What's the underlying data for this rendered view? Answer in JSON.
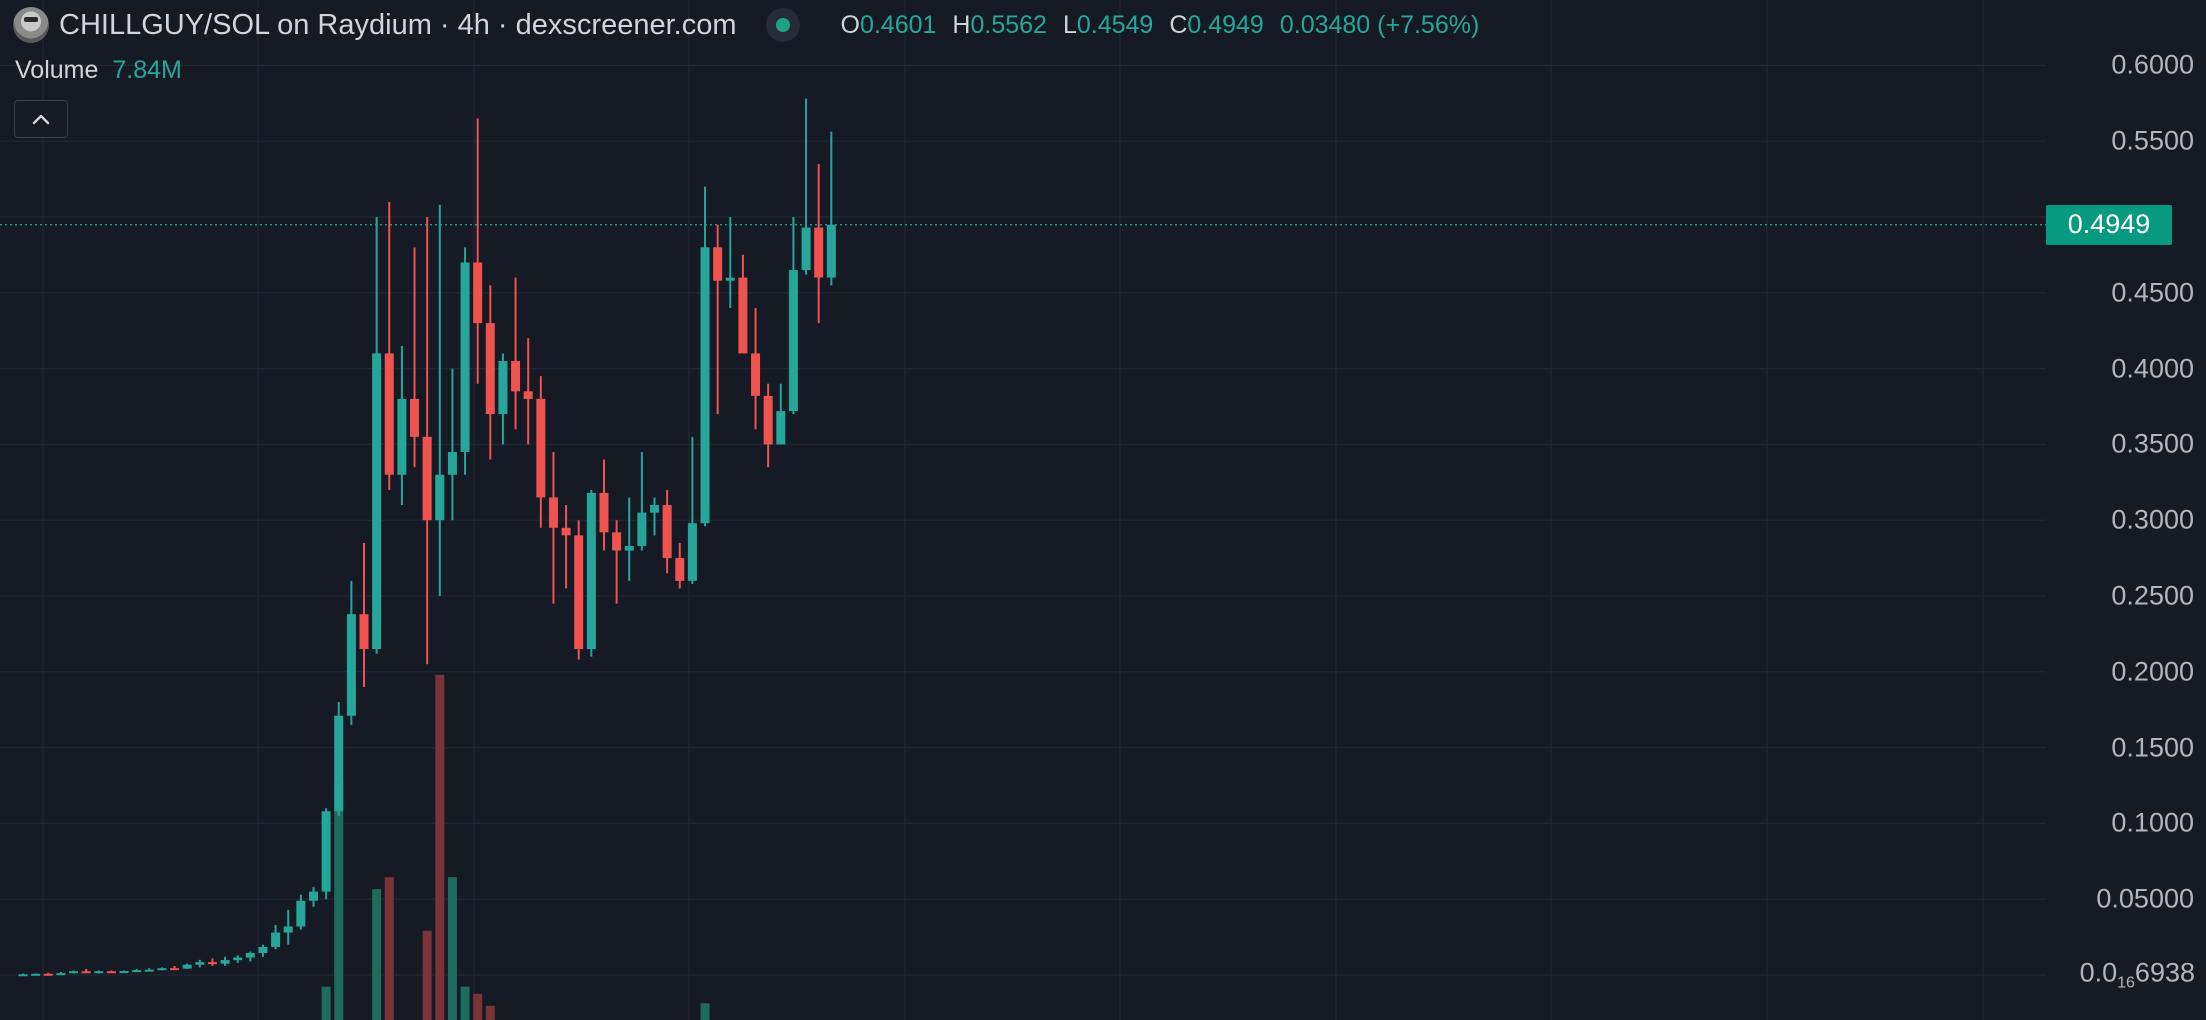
{
  "header": {
    "title": "CHILLGUY/SOL on Raydium · 4h · dexscreener.com",
    "ohlc": {
      "o_key": "O",
      "o_val": "0.4601",
      "h_key": "H",
      "h_val": "0.5562",
      "l_key": "L",
      "l_val": "0.4549",
      "c_key": "C",
      "c_val": "0.4949",
      "change": "0.03480 (+7.56%)"
    },
    "volume_label": "Volume",
    "volume_value": "7.84M",
    "logo_icon": "chillguy-token-icon",
    "live_icon": "live-status-dot-icon",
    "collapse_icon": "chevron-up-icon"
  },
  "price_axis": {
    "ticks": [
      "0.6000",
      "0.5500",
      "0.4500",
      "0.4000",
      "0.3500",
      "0.3000",
      "0.2500",
      "0.2000",
      "0.1500",
      "0.1000",
      "0.05000"
    ],
    "bottom_tick_prefix": "0.0",
    "bottom_tick_subscript": "16",
    "bottom_tick_suffix": "6938",
    "last_price": "0.4949"
  },
  "colors": {
    "background": "#161a25",
    "up": "#26a69a",
    "down": "#ef5350",
    "grid": "#232733",
    "price_line": "#26a69a"
  },
  "chart_data": {
    "type": "candlestick",
    "pair": "CHILLGUY/SOL",
    "interval": "4h",
    "y_ticks": [
      0.6,
      0.55,
      0.45,
      0.4,
      0.35,
      0.3,
      0.25,
      0.2,
      0.15,
      0.1,
      0.05
    ],
    "last_price": 0.4949,
    "candles": [
      {
        "o": 0.0,
        "h": 0.001,
        "l": 0.0,
        "c": 0.0005
      },
      {
        "o": 0.0005,
        "h": 0.001,
        "l": 0.0,
        "c": 0.0008
      },
      {
        "o": 0.0008,
        "h": 0.0015,
        "l": 0.0,
        "c": 0.0005
      },
      {
        "o": 0.0005,
        "h": 0.002,
        "l": 0.0,
        "c": 0.0012
      },
      {
        "o": 0.0012,
        "h": 0.003,
        "l": 0.001,
        "c": 0.0025
      },
      {
        "o": 0.0025,
        "h": 0.004,
        "l": 0.002,
        "c": 0.002
      },
      {
        "o": 0.002,
        "h": 0.003,
        "l": 0.001,
        "c": 0.0025
      },
      {
        "o": 0.0025,
        "h": 0.003,
        "l": 0.002,
        "c": 0.0022
      },
      {
        "o": 0.0022,
        "h": 0.003,
        "l": 0.002,
        "c": 0.0026
      },
      {
        "o": 0.0026,
        "h": 0.004,
        "l": 0.002,
        "c": 0.0032
      },
      {
        "o": 0.0032,
        "h": 0.0045,
        "l": 0.0025,
        "c": 0.0035
      },
      {
        "o": 0.0035,
        "h": 0.005,
        "l": 0.003,
        "c": 0.0045
      },
      {
        "o": 0.0045,
        "h": 0.006,
        "l": 0.0035,
        "c": 0.0042
      },
      {
        "o": 0.0042,
        "h": 0.0075,
        "l": 0.004,
        "c": 0.0068
      },
      {
        "o": 0.0068,
        "h": 0.01,
        "l": 0.005,
        "c": 0.0085
      },
      {
        "o": 0.0085,
        "h": 0.011,
        "l": 0.006,
        "c": 0.0075
      },
      {
        "o": 0.0075,
        "h": 0.012,
        "l": 0.006,
        "c": 0.0098
      },
      {
        "o": 0.0098,
        "h": 0.013,
        "l": 0.008,
        "c": 0.0115
      },
      {
        "o": 0.0115,
        "h": 0.0155,
        "l": 0.009,
        "c": 0.0145
      },
      {
        "o": 0.0145,
        "h": 0.02,
        "l": 0.012,
        "c": 0.0185
      },
      {
        "o": 0.0185,
        "h": 0.033,
        "l": 0.017,
        "c": 0.028
      },
      {
        "o": 0.028,
        "h": 0.043,
        "l": 0.02,
        "c": 0.032
      },
      {
        "o": 0.032,
        "h": 0.053,
        "l": 0.03,
        "c": 0.049
      },
      {
        "o": 0.049,
        "h": 0.058,
        "l": 0.045,
        "c": 0.055
      },
      {
        "o": 0.055,
        "h": 0.11,
        "l": 0.05,
        "c": 0.108
      },
      {
        "o": 0.108,
        "h": 0.18,
        "l": 0.105,
        "c": 0.171
      },
      {
        "o": 0.171,
        "h": 0.26,
        "l": 0.165,
        "c": 0.238
      },
      {
        "o": 0.238,
        "h": 0.285,
        "l": 0.19,
        "c": 0.215
      },
      {
        "o": 0.215,
        "h": 0.5,
        "l": 0.212,
        "c": 0.41
      },
      {
        "o": 0.41,
        "h": 0.51,
        "l": 0.32,
        "c": 0.33
      },
      {
        "o": 0.33,
        "h": 0.415,
        "l": 0.31,
        "c": 0.38
      },
      {
        "o": 0.38,
        "h": 0.48,
        "l": 0.335,
        "c": 0.355
      },
      {
        "o": 0.355,
        "h": 0.5,
        "l": 0.205,
        "c": 0.3
      },
      {
        "o": 0.3,
        "h": 0.508,
        "l": 0.25,
        "c": 0.33
      },
      {
        "o": 0.33,
        "h": 0.4,
        "l": 0.3,
        "c": 0.345
      },
      {
        "o": 0.345,
        "h": 0.48,
        "l": 0.33,
        "c": 0.47
      },
      {
        "o": 0.47,
        "h": 0.565,
        "l": 0.39,
        "c": 0.43
      },
      {
        "o": 0.43,
        "h": 0.455,
        "l": 0.34,
        "c": 0.37
      },
      {
        "o": 0.37,
        "h": 0.41,
        "l": 0.35,
        "c": 0.405
      },
      {
        "o": 0.405,
        "h": 0.46,
        "l": 0.36,
        "c": 0.385
      },
      {
        "o": 0.385,
        "h": 0.42,
        "l": 0.35,
        "c": 0.38
      },
      {
        "o": 0.38,
        "h": 0.395,
        "l": 0.295,
        "c": 0.315
      },
      {
        "o": 0.315,
        "h": 0.345,
        "l": 0.245,
        "c": 0.295
      },
      {
        "o": 0.295,
        "h": 0.31,
        "l": 0.255,
        "c": 0.29
      },
      {
        "o": 0.29,
        "h": 0.3,
        "l": 0.208,
        "c": 0.215
      },
      {
        "o": 0.215,
        "h": 0.32,
        "l": 0.21,
        "c": 0.318
      },
      {
        "o": 0.318,
        "h": 0.34,
        "l": 0.28,
        "c": 0.292
      },
      {
        "o": 0.292,
        "h": 0.3,
        "l": 0.245,
        "c": 0.28
      },
      {
        "o": 0.28,
        "h": 0.315,
        "l": 0.26,
        "c": 0.283
      },
      {
        "o": 0.283,
        "h": 0.345,
        "l": 0.28,
        "c": 0.305
      },
      {
        "o": 0.305,
        "h": 0.315,
        "l": 0.29,
        "c": 0.31
      },
      {
        "o": 0.31,
        "h": 0.32,
        "l": 0.265,
        "c": 0.275
      },
      {
        "o": 0.275,
        "h": 0.285,
        "l": 0.255,
        "c": 0.26
      },
      {
        "o": 0.26,
        "h": 0.355,
        "l": 0.258,
        "c": 0.298
      },
      {
        "o": 0.298,
        "h": 0.52,
        "l": 0.296,
        "c": 0.48
      },
      {
        "o": 0.48,
        "h": 0.495,
        "l": 0.37,
        "c": 0.458
      },
      {
        "o": 0.458,
        "h": 0.5,
        "l": 0.44,
        "c": 0.46
      },
      {
        "o": 0.46,
        "h": 0.475,
        "l": 0.41,
        "c": 0.41
      },
      {
        "o": 0.41,
        "h": 0.44,
        "l": 0.36,
        "c": 0.382
      },
      {
        "o": 0.382,
        "h": 0.39,
        "l": 0.335,
        "c": 0.35
      },
      {
        "o": 0.35,
        "h": 0.39,
        "l": 0.35,
        "c": 0.372
      },
      {
        "o": 0.372,
        "h": 0.5,
        "l": 0.37,
        "c": 0.465
      },
      {
        "o": 0.465,
        "h": 0.578,
        "l": 0.462,
        "c": 0.493
      },
      {
        "o": 0.493,
        "h": 0.535,
        "l": 0.43,
        "c": 0.4601
      },
      {
        "o": 0.4601,
        "h": 0.5562,
        "l": 0.4549,
        "c": 0.4949
      }
    ],
    "volume": {
      "indices": [
        24,
        25,
        28,
        29,
        32,
        33,
        34,
        35,
        36,
        37,
        54
      ],
      "values": [
        0.28,
        2.0,
        1.1,
        1.2,
        0.75,
        2.9,
        1.2,
        0.28,
        0.22,
        0.12,
        0.14
      ],
      "up": [
        true,
        true,
        true,
        false,
        false,
        false,
        true,
        true,
        false,
        false,
        true
      ],
      "unit": "M"
    }
  }
}
